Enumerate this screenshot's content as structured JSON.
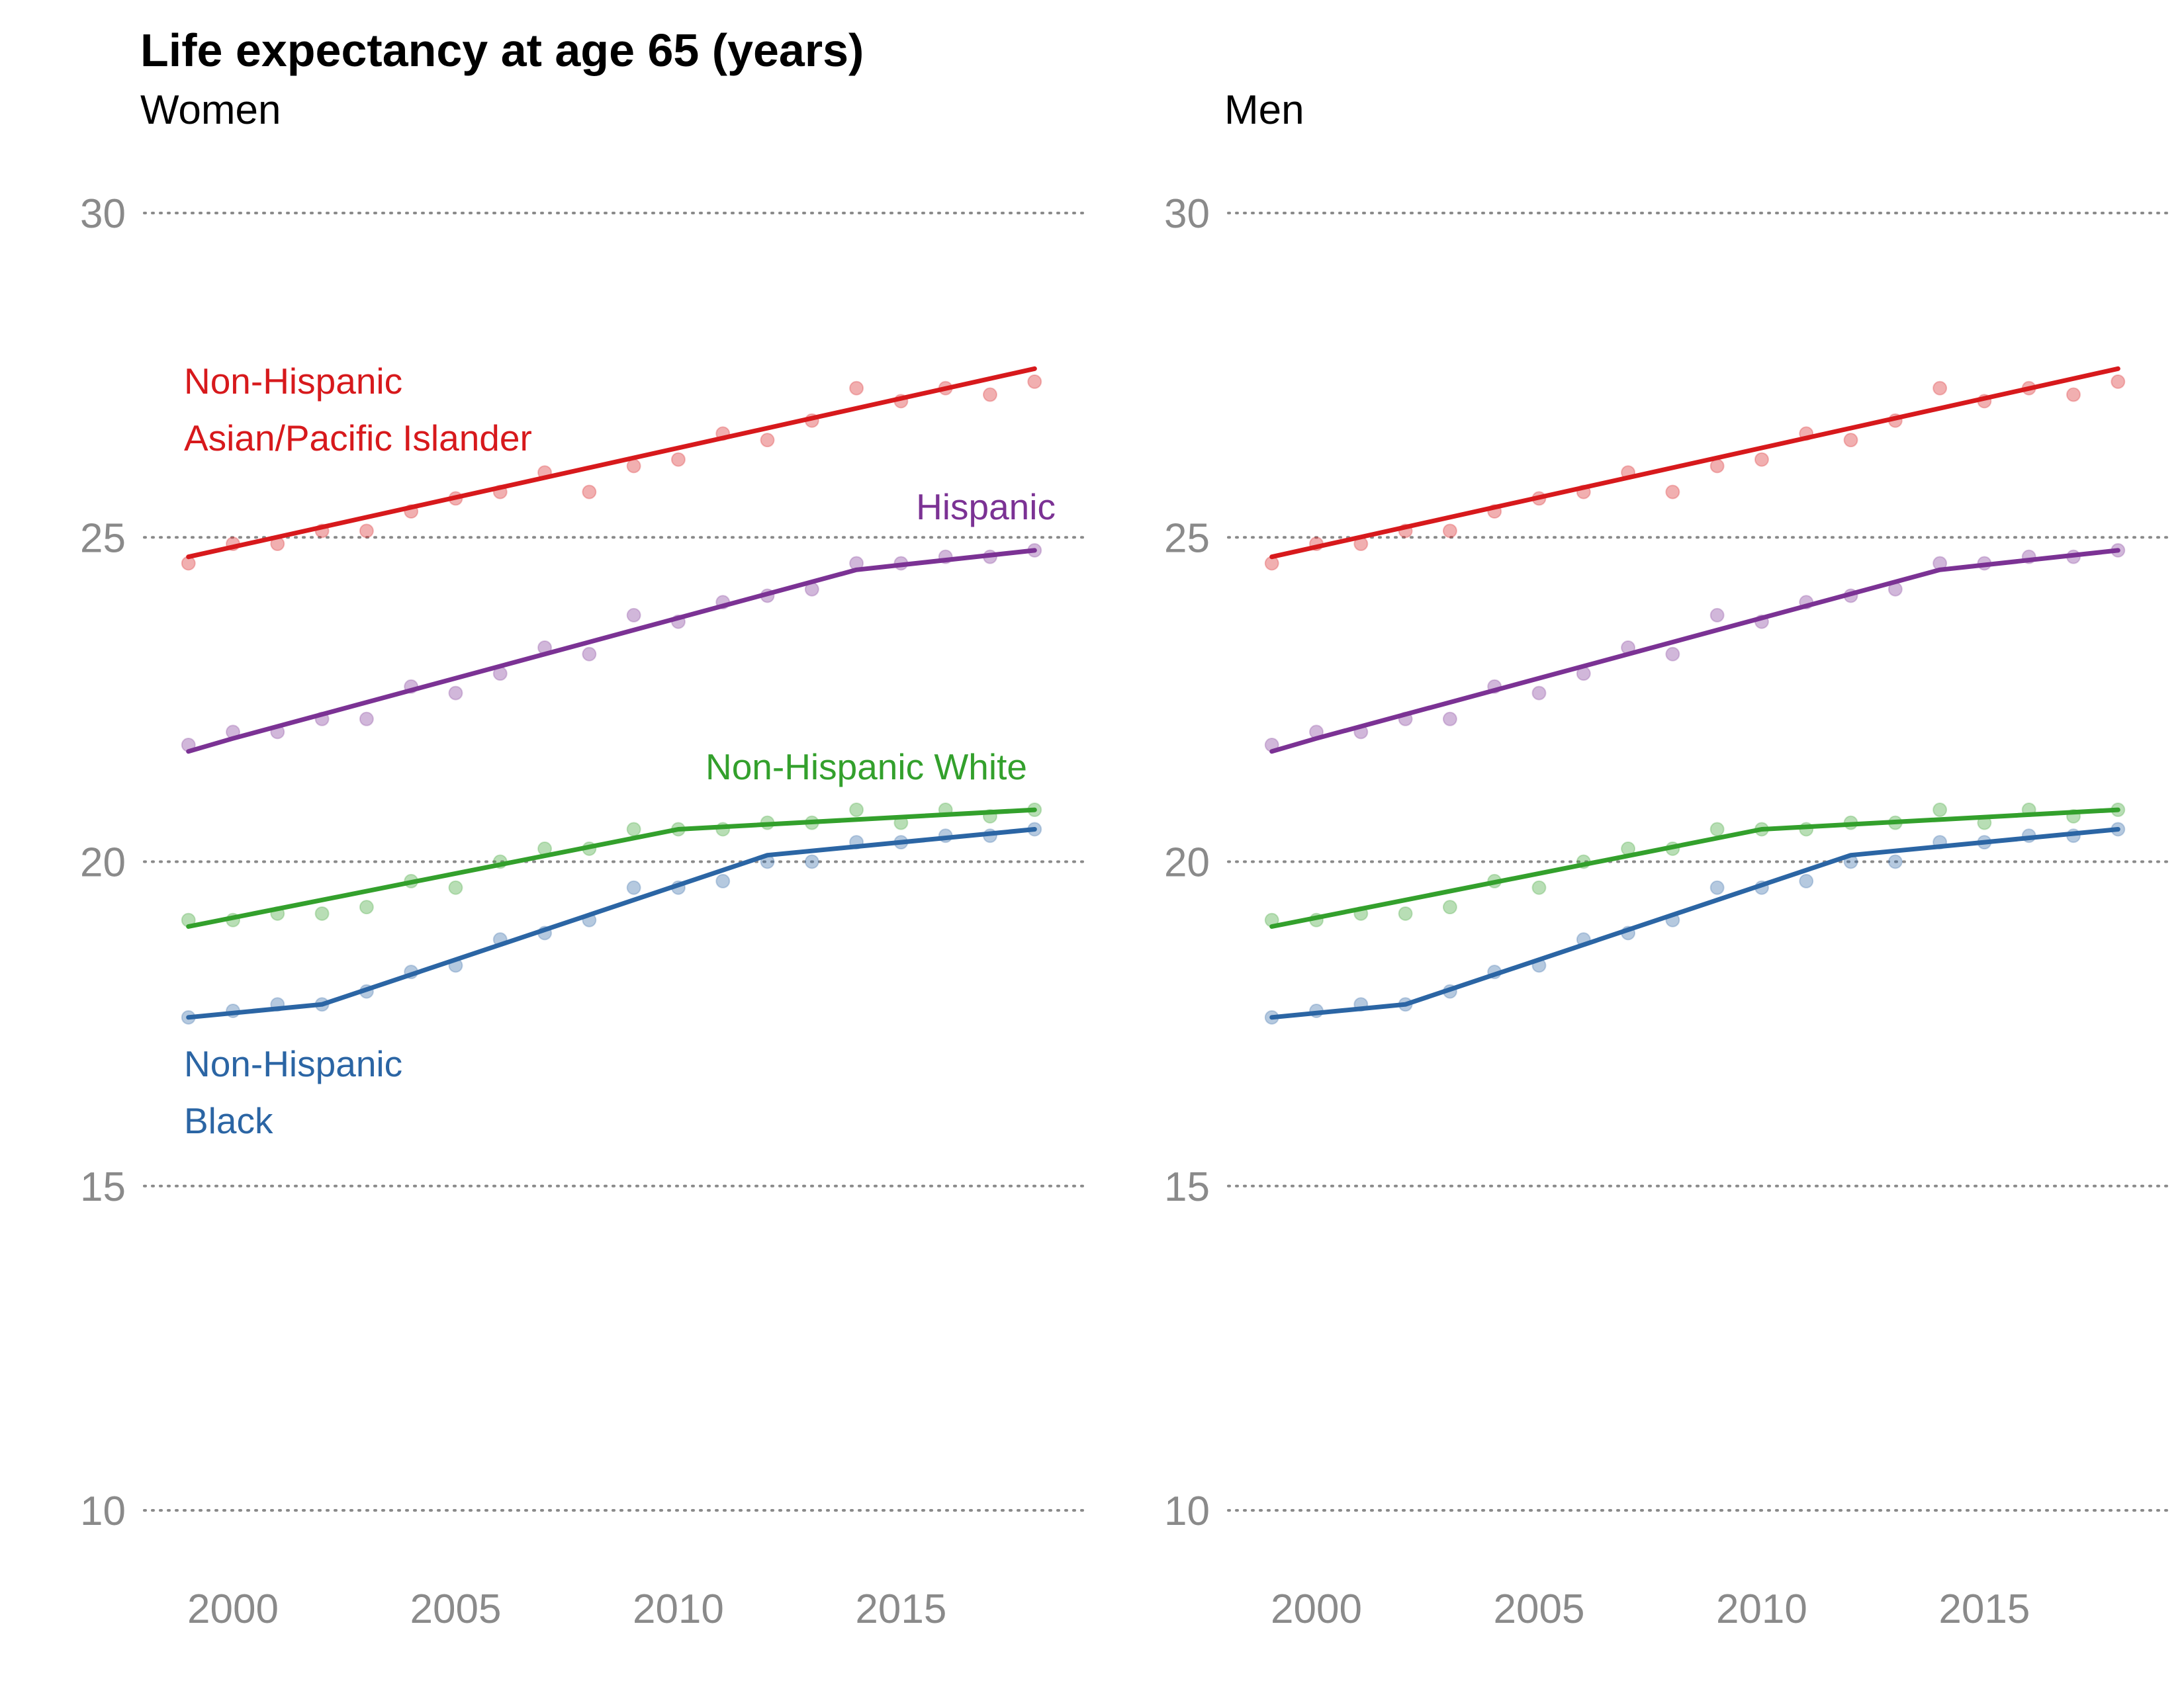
{
  "title": "Life expectancy at age 65 (years)",
  "colors": {
    "asian": "#d7191c",
    "hispanic": "#7b3294",
    "white": "#33a02c",
    "black": "#2b65a4",
    "tick_text": "#8a8a8a",
    "grid": "#8a8a8a"
  },
  "chart_data": [
    {
      "type": "line",
      "subtitle": "Women",
      "xlim": [
        1998.9,
        2018.1
      ],
      "ylim": [
        10,
        30
      ],
      "x_ticks": [
        2000,
        2005,
        2010,
        2015
      ],
      "y_ticks": [
        10,
        15,
        20,
        25,
        30
      ],
      "grid": "horizontal dotted",
      "x": [
        1999,
        2000,
        2001,
        2002,
        2003,
        2004,
        2005,
        2006,
        2007,
        2008,
        2009,
        2010,
        2011,
        2012,
        2013,
        2014,
        2015,
        2016,
        2017,
        2018
      ],
      "series": [
        {
          "key": "asian",
          "label_lines": [
            "Non-Hispanic",
            "Asian/Pacific Islander"
          ],
          "points": [
            24.6,
            24.9,
            24.9,
            25.1,
            25.1,
            25.4,
            25.6,
            25.7,
            26.0,
            25.7,
            26.1,
            26.2,
            26.6,
            26.5,
            26.8,
            27.3,
            27.1,
            27.3,
            27.2,
            27.4
          ],
          "trend": [
            [
              1999,
              24.7
            ],
            [
              2018,
              27.6
            ]
          ]
        },
        {
          "key": "hispanic",
          "label_lines": [
            "Hispanic"
          ],
          "points": [
            21.8,
            22.0,
            22.0,
            22.2,
            22.2,
            22.7,
            22.6,
            22.9,
            23.3,
            23.2,
            23.8,
            23.7,
            24.0,
            24.1,
            24.2,
            24.6,
            24.6,
            24.7,
            24.7,
            24.8
          ],
          "trend": [
            [
              1999,
              21.7
            ],
            [
              2000,
              21.9
            ],
            [
              2014,
              24.5
            ],
            [
              2018,
              24.8
            ]
          ]
        },
        {
          "key": "white",
          "label_lines": [
            "Non-Hispanic White"
          ],
          "points": [
            19.1,
            19.1,
            19.2,
            19.2,
            19.3,
            19.7,
            19.6,
            20.0,
            20.2,
            20.2,
            20.5,
            20.5,
            20.5,
            20.6,
            20.6,
            20.8,
            20.6,
            20.8,
            20.7,
            20.8
          ],
          "trend": [
            [
              1999,
              19.0
            ],
            [
              2010,
              20.5
            ],
            [
              2018,
              20.8
            ]
          ]
        },
        {
          "key": "black",
          "label_lines": [
            "Non-Hispanic",
            "Black"
          ],
          "points": [
            17.6,
            17.7,
            17.8,
            17.8,
            18.0,
            18.3,
            18.4,
            18.8,
            18.9,
            19.1,
            19.6,
            19.6,
            19.7,
            20.0,
            20.0,
            20.3,
            20.3,
            20.4,
            20.4,
            20.5
          ],
          "trend": [
            [
              1999,
              17.6
            ],
            [
              2002,
              17.8
            ],
            [
              2012,
              20.1
            ],
            [
              2018,
              20.5
            ]
          ]
        }
      ]
    },
    {
      "type": "line",
      "subtitle": "Men",
      "xlim": [
        1998.9,
        2018.1
      ],
      "ylim": [
        10,
        30
      ],
      "x_ticks": [
        2000,
        2005,
        2010,
        2015
      ],
      "y_ticks": [
        10,
        15,
        20,
        25,
        30
      ],
      "grid": "horizontal dotted",
      "x": [
        1999,
        2000,
        2001,
        2002,
        2003,
        2004,
        2005,
        2006,
        2007,
        2008,
        2009,
        2010,
        2011,
        2012,
        2013,
        2014,
        2015,
        2016,
        2017,
        2018
      ],
      "series": [
        {
          "key": "asian",
          "points": [
            24.6,
            24.9,
            24.9,
            25.1,
            25.1,
            25.4,
            25.6,
            25.7,
            26.0,
            25.7,
            26.1,
            26.2,
            26.6,
            26.5,
            26.8,
            27.3,
            27.1,
            27.3,
            27.2,
            27.4
          ],
          "trend": [
            [
              1999,
              24.7
            ],
            [
              2018,
              27.6
            ]
          ]
        },
        {
          "key": "hispanic",
          "points": [
            21.8,
            22.0,
            22.0,
            22.2,
            22.2,
            22.7,
            22.6,
            22.9,
            23.3,
            23.2,
            23.8,
            23.7,
            24.0,
            24.1,
            24.2,
            24.6,
            24.6,
            24.7,
            24.7,
            24.8
          ],
          "trend": [
            [
              1999,
              21.7
            ],
            [
              2000,
              21.9
            ],
            [
              2014,
              24.5
            ],
            [
              2018,
              24.8
            ]
          ]
        },
        {
          "key": "white",
          "points": [
            19.1,
            19.1,
            19.2,
            19.2,
            19.3,
            19.7,
            19.6,
            20.0,
            20.2,
            20.2,
            20.5,
            20.5,
            20.5,
            20.6,
            20.6,
            20.8,
            20.6,
            20.8,
            20.7,
            20.8
          ],
          "trend": [
            [
              1999,
              19.0
            ],
            [
              2010,
              20.5
            ],
            [
              2018,
              20.8
            ]
          ]
        },
        {
          "key": "black",
          "points": [
            17.6,
            17.7,
            17.8,
            17.8,
            18.0,
            18.3,
            18.4,
            18.8,
            18.9,
            19.1,
            19.6,
            19.6,
            19.7,
            20.0,
            20.0,
            20.3,
            20.3,
            20.4,
            20.4,
            20.5
          ],
          "trend": [
            [
              1999,
              17.6
            ],
            [
              2002,
              17.8
            ],
            [
              2012,
              20.1
            ],
            [
              2018,
              20.5
            ]
          ]
        }
      ]
    }
  ]
}
